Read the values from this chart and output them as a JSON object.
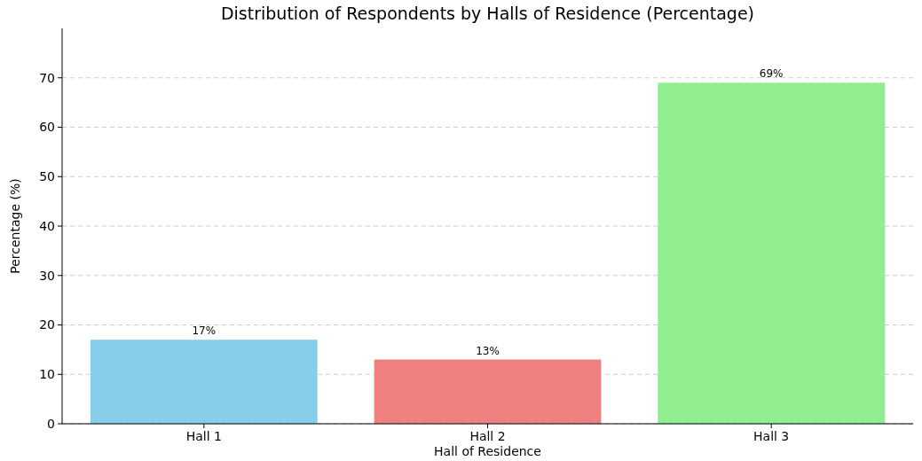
{
  "chart_data": {
    "type": "bar",
    "title": "Distribution of Respondents by Halls of Residence (Percentage)",
    "xlabel": "Hall of Residence",
    "ylabel": "Percentage (%)",
    "categories": [
      "Hall 1",
      "Hall 2",
      "Hall 3"
    ],
    "values": [
      17,
      13,
      69
    ],
    "colors": [
      "#87ceeb",
      "#f08080",
      "#90ee90"
    ],
    "value_labels": [
      "17%",
      "13%",
      "69%"
    ],
    "ylim": [
      0,
      80
    ],
    "yticks": [
      0,
      10,
      20,
      30,
      40,
      50,
      60,
      70
    ],
    "grid": "y"
  }
}
